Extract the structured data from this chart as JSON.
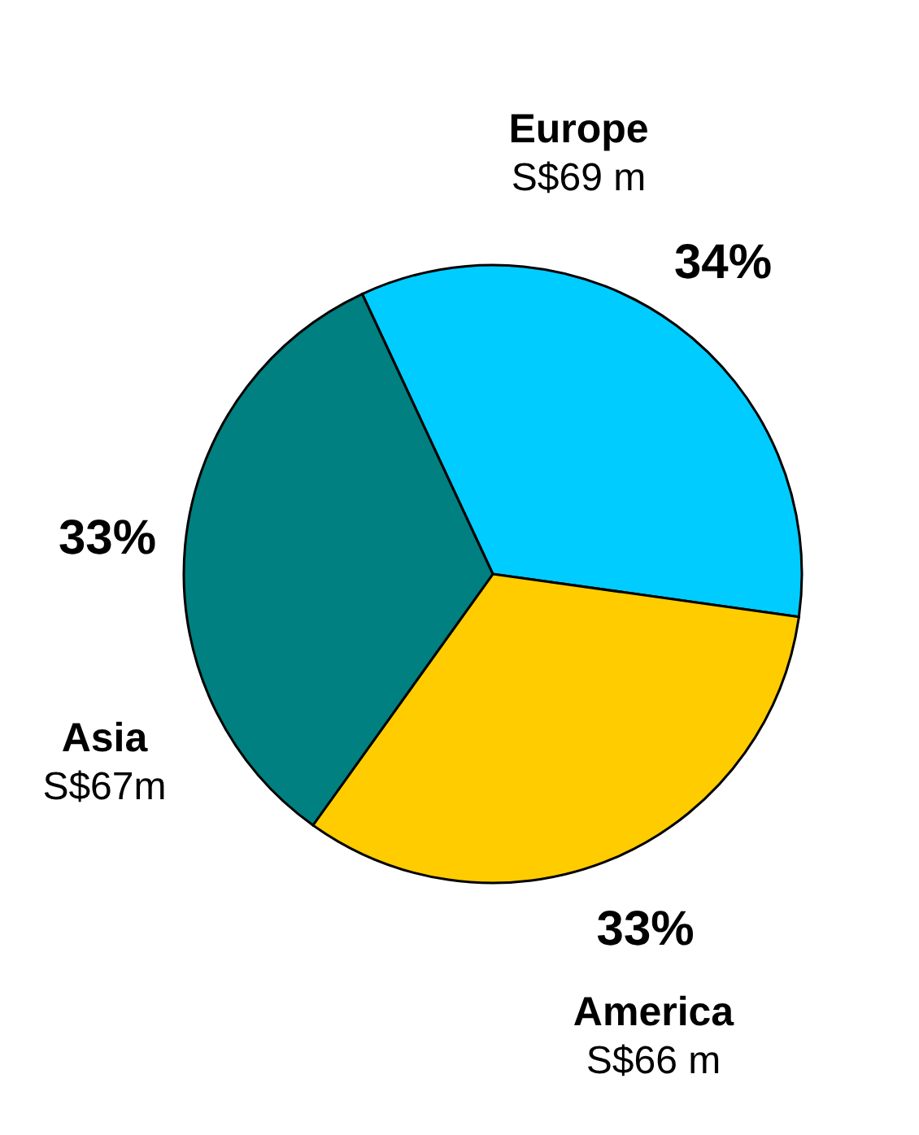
{
  "chart_data": {
    "type": "pie",
    "categories": [
      "Europe",
      "America",
      "Asia"
    ],
    "values": [
      69,
      66,
      67
    ],
    "colors": [
      "#00ccff",
      "#ffcc00",
      "#008080"
    ],
    "value_labels": [
      "S$69 m",
      "S$66 m",
      "S$67m"
    ],
    "annotations": [
      "34%",
      "33%",
      "33%"
    ]
  }
}
